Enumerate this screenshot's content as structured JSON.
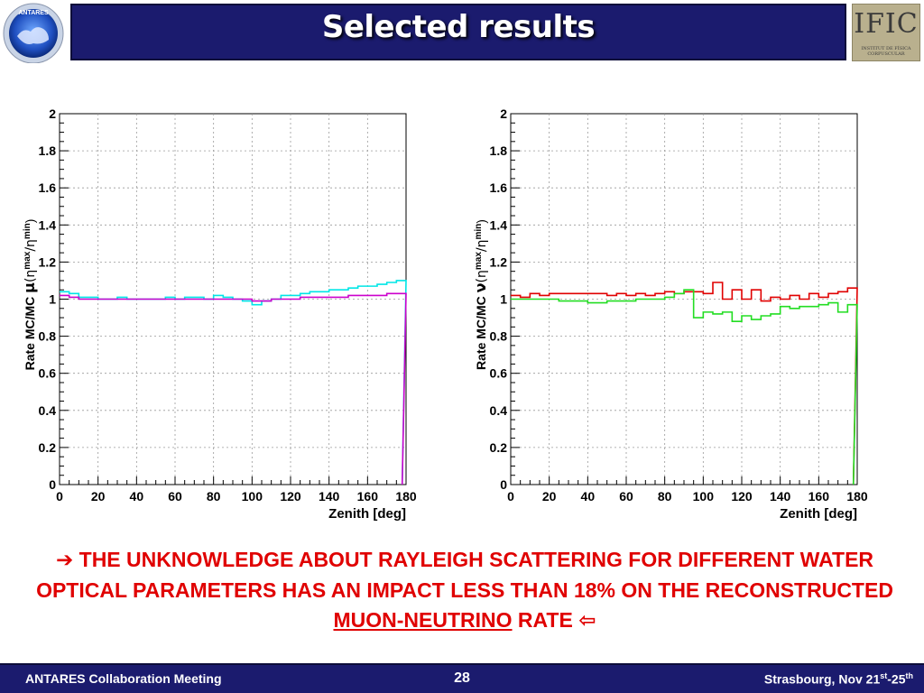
{
  "header": {
    "title": "Selected results",
    "logo_left_text": "ANTARES"
  },
  "ific_logo": {
    "name": "IFIC",
    "subtitle_1": "INSTITUT DE FÍSICA",
    "subtitle_2": "CORPUSCULAR"
  },
  "chart_data": [
    {
      "type": "line",
      "ylabel_prefix": "Rate MC/MC ",
      "ylabel_particle": "μ",
      "ylabel_suffix": "(η",
      "ylabel_sup1": "max",
      "ylabel_mid": "/η",
      "ylabel_sup2": "min",
      "ylabel_end": ")",
      "xlabel": "Zenith [deg]",
      "xlim": [
        0,
        180
      ],
      "ylim": [
        0,
        2
      ],
      "xticks": [
        "0",
        "20",
        "40",
        "60",
        "80",
        "100",
        "120",
        "140",
        "160",
        "180"
      ],
      "yticks": [
        "0",
        "0.2",
        "0.4",
        "0.6",
        "0.8",
        "1",
        "1.2",
        "1.4",
        "1.6",
        "1.8",
        "2"
      ],
      "grid": true,
      "x": [
        0,
        5,
        10,
        15,
        20,
        25,
        30,
        35,
        40,
        45,
        50,
        55,
        60,
        65,
        70,
        75,
        80,
        85,
        90,
        95,
        100,
        105,
        110,
        115,
        120,
        125,
        130,
        135,
        140,
        145,
        150,
        155,
        160,
        165,
        170,
        175
      ],
      "series": [
        {
          "color": "#00e6e6",
          "values": [
            1.04,
            1.03,
            1.01,
            1.01,
            1.0,
            1.0,
            1.01,
            1.0,
            1.0,
            1.0,
            1.0,
            1.01,
            1.0,
            1.01,
            1.01,
            1.0,
            1.02,
            1.01,
            1.0,
            0.99,
            0.97,
            0.99,
            1.0,
            1.02,
            1.02,
            1.03,
            1.04,
            1.04,
            1.05,
            1.05,
            1.06,
            1.07,
            1.07,
            1.08,
            1.09,
            1.1
          ]
        },
        {
          "color": "#cc00cc",
          "values": [
            1.02,
            1.01,
            1.0,
            1.0,
            1.0,
            1.0,
            1.0,
            1.0,
            1.0,
            1.0,
            1.0,
            1.0,
            1.0,
            1.0,
            1.0,
            1.0,
            1.0,
            1.0,
            1.0,
            1.0,
            0.99,
            0.99,
            1.0,
            1.0,
            1.0,
            1.01,
            1.01,
            1.01,
            1.01,
            1.01,
            1.02,
            1.02,
            1.02,
            1.02,
            1.03,
            1.03
          ]
        }
      ]
    },
    {
      "type": "line",
      "ylabel_prefix": "Rate MC/MC ",
      "ylabel_particle": "ν",
      "ylabel_suffix": "(η",
      "ylabel_sup1": "max",
      "ylabel_mid": "/η",
      "ylabel_sup2": "min",
      "ylabel_end": ")",
      "xlabel": "Zenith [deg]",
      "xlim": [
        0,
        180
      ],
      "ylim": [
        0,
        2
      ],
      "xticks": [
        "0",
        "20",
        "40",
        "60",
        "80",
        "100",
        "120",
        "140",
        "160",
        "180"
      ],
      "yticks": [
        "0",
        "0.2",
        "0.4",
        "0.6",
        "0.8",
        "1",
        "1.2",
        "1.4",
        "1.6",
        "1.8",
        "2"
      ],
      "grid": true,
      "x": [
        0,
        5,
        10,
        15,
        20,
        25,
        30,
        35,
        40,
        45,
        50,
        55,
        60,
        65,
        70,
        75,
        80,
        85,
        90,
        95,
        100,
        105,
        110,
        115,
        120,
        125,
        130,
        135,
        140,
        145,
        150,
        155,
        160,
        165,
        170,
        175
      ],
      "series": [
        {
          "color": "#e00000",
          "values": [
            1.02,
            1.01,
            1.03,
            1.02,
            1.03,
            1.03,
            1.03,
            1.03,
            1.03,
            1.03,
            1.02,
            1.03,
            1.02,
            1.03,
            1.02,
            1.03,
            1.04,
            1.03,
            1.04,
            1.04,
            1.03,
            1.09,
            1.0,
            1.05,
            1.0,
            1.05,
            0.99,
            1.01,
            1.0,
            1.02,
            1.0,
            1.03,
            1.01,
            1.03,
            1.04,
            1.06
          ]
        },
        {
          "color": "#22dd22",
          "values": [
            1.0,
            1.0,
            1.0,
            1.0,
            1.0,
            0.99,
            0.99,
            0.99,
            0.98,
            0.98,
            0.99,
            0.99,
            0.99,
            1.0,
            1.0,
            1.0,
            1.01,
            1.03,
            1.05,
            0.9,
            0.93,
            0.92,
            0.93,
            0.88,
            0.91,
            0.89,
            0.91,
            0.92,
            0.96,
            0.95,
            0.96,
            0.96,
            0.97,
            0.98,
            0.93,
            0.97
          ]
        }
      ]
    }
  ],
  "statement": {
    "line1": "THE UNKNOWLEDGE ABOUT RAYLEIGH SCATTERING FOR DIFFERENT WATER",
    "line2": "OPTICAL PARAMETERS HAS AN IMPACT LESS THAN 18% ON THE RECONSTRUCTED",
    "line3_underlined": "MUON-NEUTRINO",
    "line3_rest": "RATE",
    "arrow_right": "➔",
    "arrow_left": "⇦"
  },
  "footer": {
    "left": "ANTARES Collaboration Meeting",
    "page": "28",
    "right_prefix": "Strasbourg, Nov 21",
    "right_sup1": "st",
    "right_mid": "-25",
    "right_sup2": "th"
  }
}
